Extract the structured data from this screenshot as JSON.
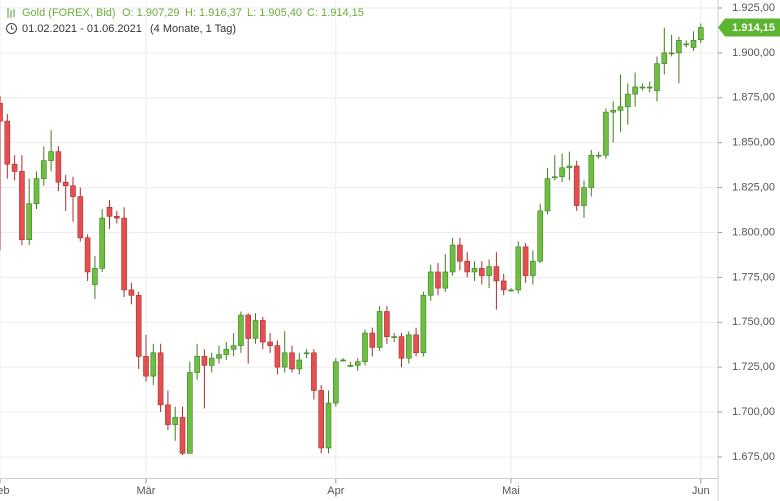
{
  "chart_data": {
    "type": "candlestick",
    "title": "Gold (FOREX, Bid)",
    "ohlc_labels": [
      "O: 1.907,29",
      "H: 1.916,37",
      "L: 1.905,40",
      "C: 1.914,15"
    ],
    "subtitle": "01.02.2021 - 01.06.2021",
    "period": "(4 Monate, 1 Tag)",
    "last_label": {
      "value": 1914.15,
      "label": "1.914,15"
    },
    "up_color": "#6cbf3f",
    "down_color": "#e4504f",
    "grid": true,
    "ylim": [
      1663,
      1929
    ],
    "yticks": [
      {
        "value": 1675,
        "label": "1.675,00"
      },
      {
        "value": 1700,
        "label": "1.700,00"
      },
      {
        "value": 1725,
        "label": "1.725,00"
      },
      {
        "value": 1750,
        "label": "1.750,00"
      },
      {
        "value": 1775,
        "label": "1.775,00"
      },
      {
        "value": 1800,
        "label": "1.800,00"
      },
      {
        "value": 1825,
        "label": "1.825,00"
      },
      {
        "value": 1850,
        "label": "1.850,00"
      },
      {
        "value": 1875,
        "label": "1.875,00"
      },
      {
        "value": 1900,
        "label": "1.900,00"
      },
      {
        "value": 1925,
        "label": "1.925,00"
      }
    ],
    "xticks": [
      {
        "value": 0,
        "label": "Feb"
      },
      {
        "value": 20,
        "label": "Mär"
      },
      {
        "value": 46,
        "label": "Apr"
      },
      {
        "value": 70,
        "label": "Mai"
      },
      {
        "value": 96,
        "label": "Jun"
      }
    ],
    "open": [
      1872,
      1862,
      1838,
      1834,
      1796,
      1816,
      1830,
      1840,
      1845,
      1828,
      1826,
      1820,
      1797,
      1771,
      1780,
      1814,
      1809,
      1808,
      1768,
      1765,
      1731,
      1720,
      1733,
      1704,
      1693,
      1697,
      1677,
      1722,
      1731,
      1726,
      1730,
      1732,
      1735,
      1737,
      1754,
      1741,
      1751,
      1739,
      1737,
      1725,
      1733,
      1724,
      1733,
      1733,
      1712,
      1680,
      1705,
      1729,
      1726,
      1726,
      1728,
      1744,
      1736,
      1756,
      1742,
      1742,
      1730,
      1743,
      1733,
      1765,
      1778,
      1769,
      1778,
      1793,
      1784,
      1778,
      1780,
      1776,
      1781,
      1773,
      1768,
      1768,
      1792,
      1776,
      1784,
      1812,
      1831,
      1831,
      1836,
      1837,
      1815,
      1825,
      1843,
      1843,
      1867,
      1868,
      1870,
      1877,
      1881,
      1881,
      1879,
      1894,
      1900,
      1900,
      1905,
      1903,
      1907.29
    ],
    "high": [
      1876,
      1866,
      1843,
      1843,
      1830,
      1834,
      1848,
      1857,
      1848,
      1832,
      1831,
      1825,
      1799,
      1787,
      1813,
      1818,
      1812,
      1814,
      1772,
      1767,
      1743,
      1738,
      1738,
      1712,
      1703,
      1703,
      1728,
      1738,
      1735,
      1733,
      1737,
      1739,
      1744,
      1756,
      1755,
      1755,
      1753,
      1744,
      1740,
      1745,
      1737,
      1733,
      1735,
      1735,
      1715,
      1712,
      1730,
      1730,
      1728,
      1730,
      1746,
      1747,
      1759,
      1759,
      1744,
      1744,
      1745,
      1747,
      1767,
      1782,
      1783,
      1788,
      1797,
      1797,
      1789,
      1784,
      1784,
      1785,
      1789,
      1777,
      1769,
      1795,
      1794,
      1790,
      1816,
      1836,
      1843,
      1844,
      1845,
      1840,
      1829,
      1846,
      1845,
      1869,
      1873,
      1888,
      1883,
      1889,
      1883,
      1884,
      1898,
      1914,
      1910,
      1909,
      1907,
      1912,
      1916.37
    ],
    "low": [
      1790,
      1830,
      1829,
      1793,
      1793,
      1813,
      1826,
      1834,
      1823,
      1812,
      1806,
      1795,
      1773,
      1763,
      1778,
      1802,
      1805,
      1764,
      1760,
      1724,
      1717,
      1715,
      1700,
      1690,
      1684,
      1676,
      1678,
      1718,
      1702,
      1722,
      1727,
      1729,
      1731,
      1733,
      1727,
      1738,
      1735,
      1733,
      1721,
      1722,
      1722,
      1721,
      1730,
      1707,
      1677,
      1677,
      1703,
      1728,
      1725,
      1723,
      1726,
      1731,
      1734,
      1738,
      1739,
      1725,
      1727,
      1731,
      1731,
      1762,
      1765,
      1767,
      1776,
      1779,
      1775,
      1773,
      1771,
      1769,
      1757,
      1765,
      1767,
      1766,
      1772,
      1771,
      1783,
      1810,
      1829,
      1828,
      1829,
      1812,
      1808,
      1820,
      1841,
      1841,
      1850,
      1856,
      1860,
      1870,
      1879,
      1878,
      1873,
      1888,
      1898,
      1883,
      1903,
      1901,
      1905.4
    ],
    "close": [
      1862,
      1838,
      1834,
      1796,
      1816,
      1830,
      1840,
      1845,
      1828,
      1826,
      1820,
      1797,
      1778,
      1780,
      1808,
      1809,
      1808,
      1768,
      1765,
      1731,
      1720,
      1733,
      1704,
      1693,
      1697,
      1677,
      1722,
      1731,
      1726,
      1730,
      1732,
      1735,
      1737,
      1754,
      1741,
      1751,
      1739,
      1737,
      1725,
      1733,
      1724,
      1729,
      1733,
      1712,
      1680,
      1705,
      1728,
      1729,
      1726,
      1728,
      1744,
      1736,
      1756,
      1742,
      1742,
      1730,
      1743,
      1733,
      1765,
      1778,
      1769,
      1778,
      1793,
      1784,
      1778,
      1780,
      1776,
      1781,
      1773,
      1768,
      1768,
      1792,
      1776,
      1784,
      1812,
      1830,
      1831,
      1836,
      1837,
      1815,
      1825,
      1843,
      1843,
      1867,
      1868,
      1870,
      1877,
      1881,
      1881,
      1881,
      1894,
      1900,
      1900,
      1907,
      1905,
      1907,
      1914.15
    ]
  }
}
